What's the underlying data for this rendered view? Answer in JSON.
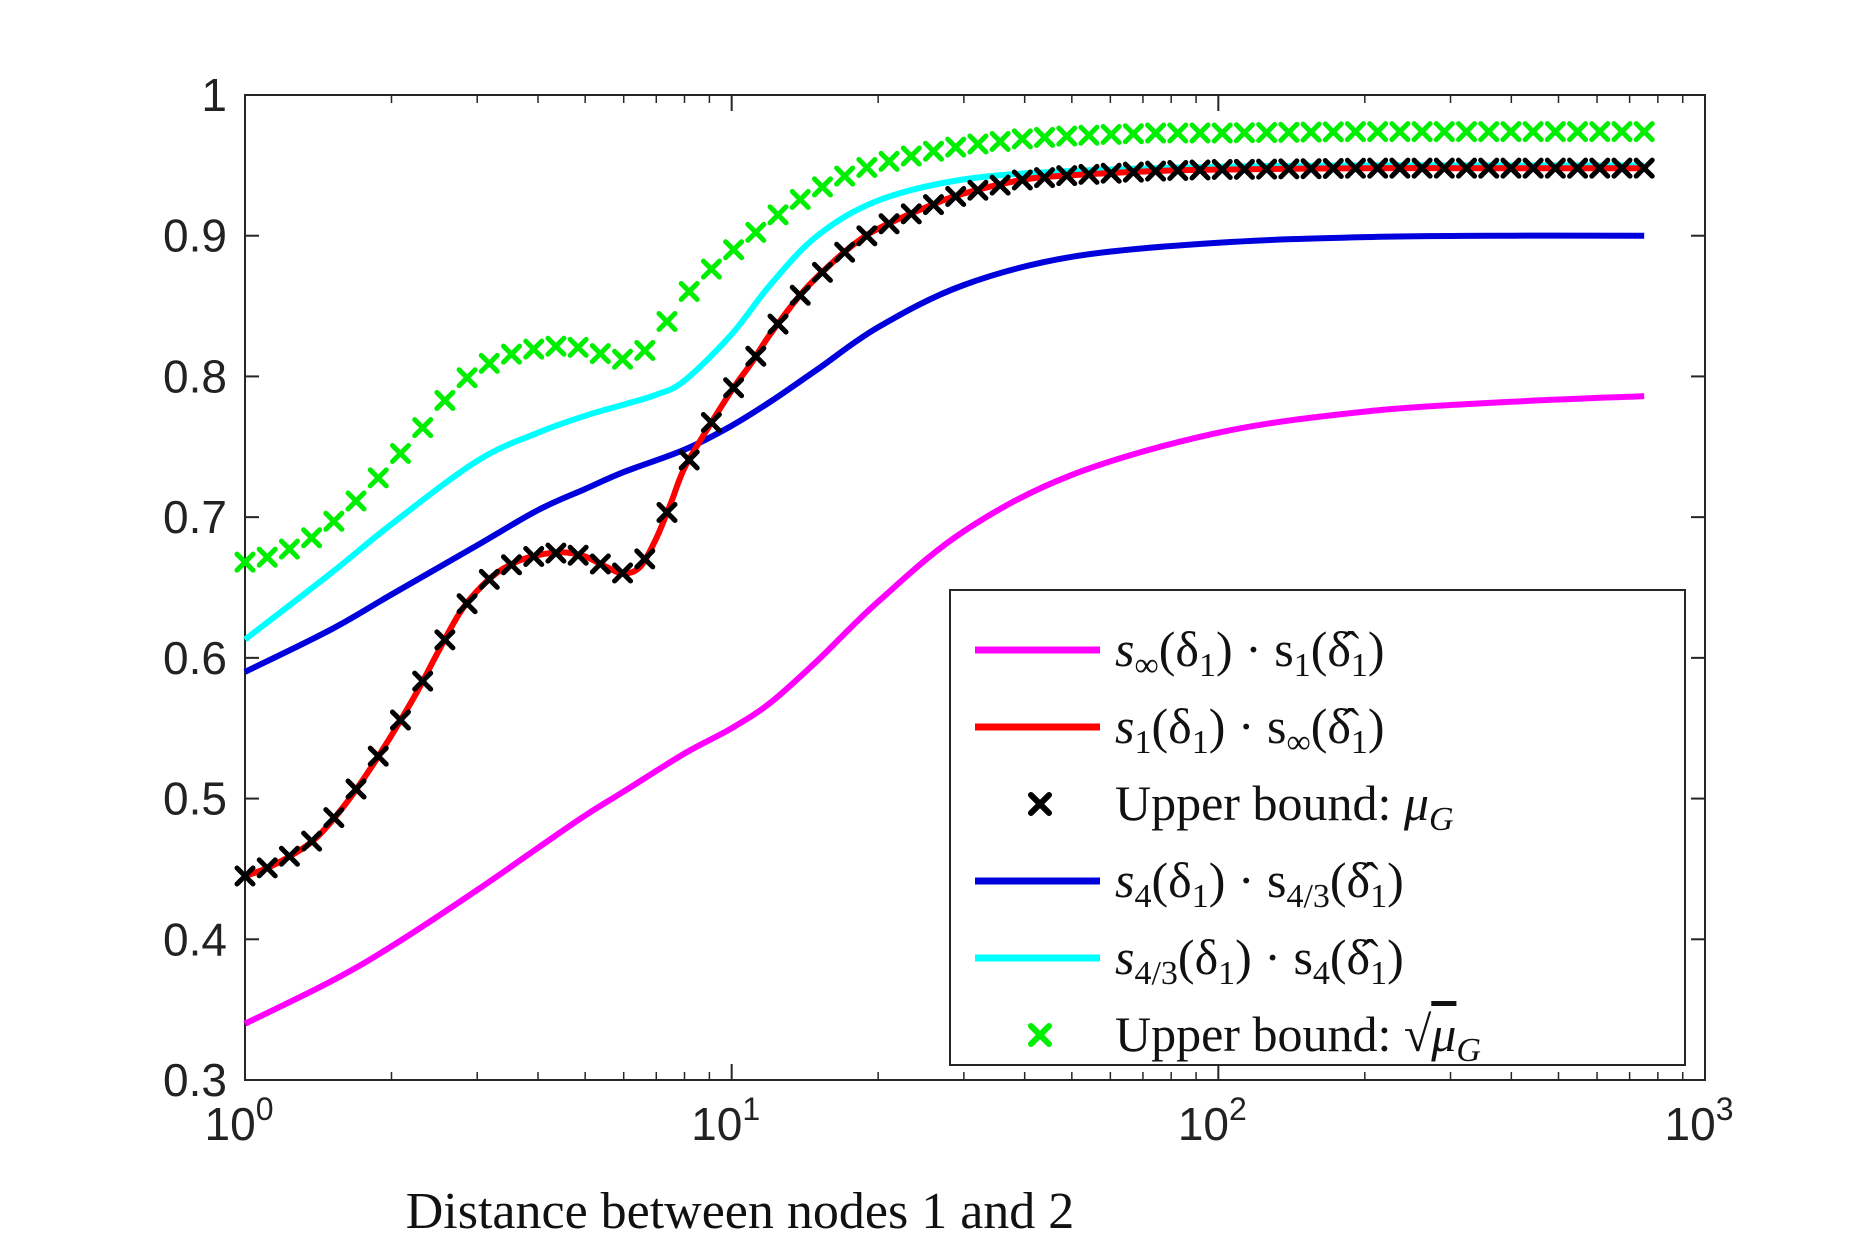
{
  "chart_data": {
    "type": "line",
    "xlabel": "Distance between nodes 1 and 2",
    "ylabel": "",
    "xscale": "log",
    "xlim": [
      1,
      1000
    ],
    "ylim": [
      0.3,
      1.0
    ],
    "xticks": [
      {
        "base": "10",
        "exp": "0"
      },
      {
        "base": "10",
        "exp": "1"
      },
      {
        "base": "10",
        "exp": "2"
      },
      {
        "base": "10",
        "exp": "3"
      }
    ],
    "yticks": [
      "0.3",
      "0.4",
      "0.5",
      "0.6",
      "0.7",
      "0.8",
      "0.9",
      "1"
    ],
    "grid": false,
    "legend_position": "lower-right",
    "series": [
      {
        "name": "s∞(δ1) · s1(δ̂1)",
        "legend_parts": [
          {
            "t": "s"
          },
          {
            "t": "∞",
            "sub": true
          },
          {
            "t": "(δ"
          },
          {
            "t": "1",
            "sub": true
          },
          {
            "t": ") · s"
          },
          {
            "t": "1",
            "sub": true
          },
          {
            "t": "(δ̂"
          },
          {
            "t": "1",
            "sub": true
          },
          {
            "t": ")"
          }
        ],
        "color": "#ff00ff",
        "style": "line",
        "x": [
          1,
          1.5,
          2,
          3,
          4,
          5,
          6,
          8,
          10,
          12,
          15,
          20,
          30,
          50,
          100,
          200,
          400,
          750
        ],
        "y": [
          0.34,
          0.37,
          0.395,
          0.435,
          0.465,
          0.488,
          0.505,
          0.532,
          0.55,
          0.568,
          0.598,
          0.64,
          0.69,
          0.73,
          0.76,
          0.775,
          0.782,
          0.786
        ]
      },
      {
        "name": "s1(δ1) · s∞(δ̂1)",
        "legend_parts": [
          {
            "t": "s"
          },
          {
            "t": "1",
            "sub": true
          },
          {
            "t": "(δ"
          },
          {
            "t": "1",
            "sub": true
          },
          {
            "t": ") · s"
          },
          {
            "t": "∞",
            "sub": true
          },
          {
            "t": "(δ̂"
          },
          {
            "t": "1",
            "sub": true
          },
          {
            "t": ")"
          }
        ],
        "color": "#ff0000",
        "style": "line",
        "x": [
          1,
          1.1,
          1.25,
          1.4,
          1.6,
          1.8,
          2,
          2.25,
          2.5,
          2.8,
          3.2,
          3.6,
          4,
          4.5,
          5,
          5.5,
          6,
          6.5,
          7,
          7.5,
          8,
          9,
          10,
          11,
          12,
          14,
          16,
          18,
          20,
          25,
          30,
          40,
          50,
          75,
          100,
          200,
          400,
          750
        ],
        "y": [
          0.445,
          0.45,
          0.46,
          0.472,
          0.495,
          0.52,
          0.545,
          0.575,
          0.605,
          0.635,
          0.657,
          0.668,
          0.673,
          0.675,
          0.672,
          0.665,
          0.66,
          0.665,
          0.685,
          0.71,
          0.735,
          0.765,
          0.79,
          0.81,
          0.83,
          0.86,
          0.88,
          0.895,
          0.905,
          0.92,
          0.93,
          0.94,
          0.943,
          0.946,
          0.947,
          0.948,
          0.948,
          0.948
        ]
      },
      {
        "name": "Upper bound: μG",
        "legend_parts": [
          {
            "t": "Upper bound: "
          },
          {
            "t": "μ",
            "italic": true
          },
          {
            "t": "G",
            "sub": true,
            "italic": true
          }
        ],
        "color": "#000000",
        "style": "markers",
        "x": [
          1,
          1.1,
          1.25,
          1.4,
          1.6,
          1.8,
          2,
          2.25,
          2.5,
          2.8,
          3.2,
          3.6,
          4,
          4.5,
          5,
          5.5,
          6,
          6.5,
          7,
          7.5,
          8,
          9,
          10,
          11,
          12,
          14,
          16,
          18,
          20,
          25,
          30,
          40,
          50,
          75,
          100,
          200,
          400,
          750
        ],
        "y": [
          0.445,
          0.45,
          0.46,
          0.472,
          0.495,
          0.52,
          0.545,
          0.575,
          0.605,
          0.635,
          0.657,
          0.668,
          0.673,
          0.675,
          0.672,
          0.665,
          0.66,
          0.665,
          0.685,
          0.71,
          0.735,
          0.765,
          0.79,
          0.81,
          0.83,
          0.86,
          0.88,
          0.895,
          0.905,
          0.92,
          0.93,
          0.94,
          0.943,
          0.946,
          0.947,
          0.948,
          0.948,
          0.948
        ]
      },
      {
        "name": "s4(δ1) · s4/3(δ̂1)",
        "legend_parts": [
          {
            "t": "s"
          },
          {
            "t": "4",
            "sub": true
          },
          {
            "t": "(δ"
          },
          {
            "t": "1",
            "sub": true
          },
          {
            "t": ") · s"
          },
          {
            "t": "4/3",
            "sub": true
          },
          {
            "t": "(δ̂"
          },
          {
            "t": "1",
            "sub": true
          },
          {
            "t": ")"
          }
        ],
        "color": "#0000dd",
        "style": "line",
        "x": [
          1,
          1.5,
          2,
          3,
          4,
          5,
          6,
          8,
          10,
          12,
          15,
          20,
          30,
          50,
          100,
          200,
          400,
          750
        ],
        "y": [
          0.59,
          0.62,
          0.645,
          0.68,
          0.705,
          0.72,
          0.732,
          0.748,
          0.765,
          0.782,
          0.805,
          0.835,
          0.865,
          0.885,
          0.895,
          0.899,
          0.9,
          0.9
        ]
      },
      {
        "name": "s4/3(δ1) · s4(δ̂1)",
        "legend_parts": [
          {
            "t": "s"
          },
          {
            "t": "4/3",
            "sub": true
          },
          {
            "t": "(δ"
          },
          {
            "t": "1",
            "sub": true
          },
          {
            "t": ") · s"
          },
          {
            "t": "4",
            "sub": true
          },
          {
            "t": "(δ̂"
          },
          {
            "t": "1",
            "sub": true
          },
          {
            "t": ")"
          }
        ],
        "color": "#00ffff",
        "style": "line",
        "x": [
          1,
          1.5,
          2,
          3,
          4,
          5,
          6,
          7,
          8,
          10,
          12,
          15,
          20,
          30,
          50,
          100,
          200,
          400,
          750
        ],
        "y": [
          0.613,
          0.66,
          0.695,
          0.74,
          0.76,
          0.772,
          0.78,
          0.787,
          0.797,
          0.83,
          0.865,
          0.9,
          0.925,
          0.94,
          0.946,
          0.949,
          0.95,
          0.95,
          0.95
        ]
      },
      {
        "name": "Upper bound: √μG",
        "legend_parts": [
          {
            "t": "Upper bound: "
          },
          {
            "t": "√",
            "italic": false
          },
          {
            "t": "μ",
            "italic": true,
            "over": true
          },
          {
            "t": "G",
            "sub": true,
            "italic": true
          }
        ],
        "color": "#00ee00",
        "style": "markers",
        "x": [
          1,
          1.1,
          1.25,
          1.4,
          1.6,
          1.8,
          2,
          2.25,
          2.5,
          2.8,
          3.2,
          3.6,
          4,
          4.5,
          5,
          5.5,
          6,
          6.5,
          7,
          7.5,
          8,
          9,
          10,
          11,
          12,
          14,
          16,
          18,
          20,
          25,
          30,
          40,
          50,
          75,
          100,
          200,
          400,
          750
        ],
        "y": [
          0.668,
          0.671,
          0.678,
          0.687,
          0.703,
          0.721,
          0.738,
          0.758,
          0.778,
          0.797,
          0.81,
          0.817,
          0.82,
          0.822,
          0.82,
          0.815,
          0.812,
          0.815,
          0.828,
          0.843,
          0.857,
          0.875,
          0.889,
          0.9,
          0.911,
          0.927,
          0.938,
          0.946,
          0.951,
          0.959,
          0.964,
          0.969,
          0.971,
          0.973,
          0.973,
          0.974,
          0.974,
          0.974
        ]
      }
    ]
  }
}
